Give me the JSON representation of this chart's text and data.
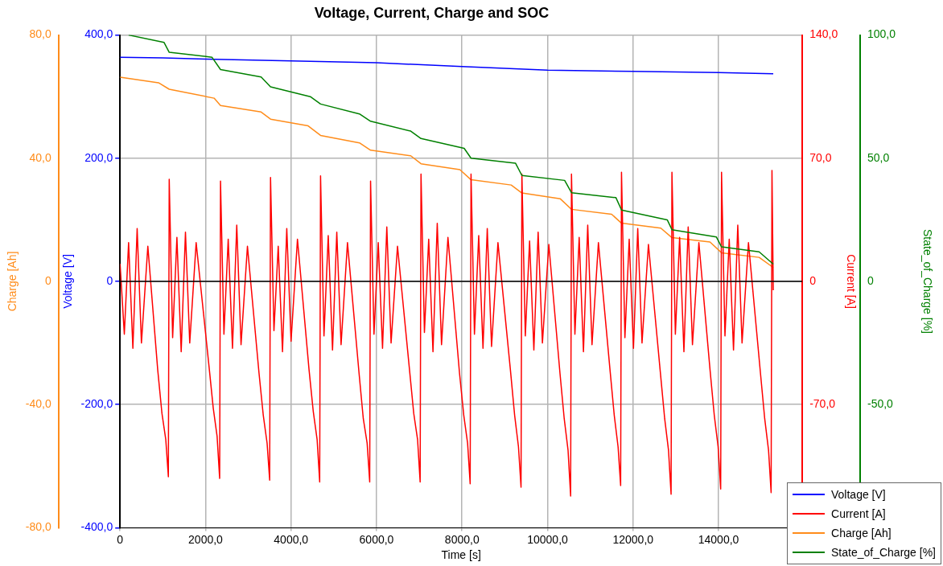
{
  "chart_data": [
    {
      "type": "line",
      "title": "Voltage, Current, Charge and SOC",
      "xlabel": "Time [s]",
      "ylabel": "Voltage [V]",
      "y2label": "Current [A]",
      "y3label": "Charge [Ah]",
      "xlim": [
        0,
        15960
      ],
      "xticks": [
        0,
        {
          "value": 2000,
          "label": "2000,0"
        },
        {
          "value": 4000,
          "label": "4000,0"
        },
        {
          "value": 6000,
          "label": "6000,0"
        },
        {
          "value": 8000,
          "label": "8000,0"
        },
        {
          "value": 10000,
          "label": "10000,0"
        },
        {
          "value": 12000,
          "label": "12000,0"
        },
        {
          "value": 14000,
          "label": "14000,0"
        }
      ],
      "ylim": [
        -400,
        400
      ],
      "yticks": [
        {
          "value": -400,
          "label": "-400,0"
        },
        {
          "value": -200,
          "label": "-200,0"
        },
        0,
        {
          "value": 200,
          "label": "200,0"
        },
        {
          "value": 400,
          "label": "400,0"
        }
      ],
      "y2lim": [
        -140,
        140
      ],
      "y2ticks": [
        {
          "value": -70,
          "label": "-70,0"
        },
        0,
        {
          "value": 70,
          "label": "70,0"
        },
        {
          "value": 140,
          "label": "140,0"
        }
      ],
      "y3lim": [
        -80,
        80
      ],
      "y3ticks": [
        {
          "value": -80,
          "label": "-80,0"
        },
        {
          "value": -40,
          "label": "-40,0"
        },
        0,
        {
          "value": 40,
          "label": "40,0"
        },
        {
          "value": 80,
          "label": "80,0"
        }
      ],
      "grid": true,
      "legend": "bottom right",
      "marker": "none",
      "line_style": "solid",
      "ref_lines": [
        {
          "axis": "y",
          "value": 0,
          "color": "#000000"
        }
      ],
      "series": [
        {
          "name": "Voltage [V]",
          "color": "#0000ff",
          "x": [
            0,
            1000,
            2000,
            4000,
            6000,
            8000,
            10000,
            12000,
            14000,
            15280
          ],
          "values": [
            364,
            363,
            361,
            358,
            355,
            349,
            343,
            341,
            339,
            337
          ]
        },
        {
          "name": "Current [A]",
          "color": "#ff0000",
          "axis": "y2",
          "x": [
            0,
            100,
            200,
            300,
            400,
            500,
            650,
            880,
            980,
            1070,
            1130,
            1150,
            1230,
            1330,
            1430,
            1530,
            1630,
            1780,
            2080,
            2180,
            2270,
            2330,
            2350,
            2430,
            2530,
            2630,
            2730,
            2830,
            2980,
            3250,
            3350,
            3440,
            3500,
            3520,
            3600,
            3700,
            3800,
            3900,
            4000,
            4150,
            4420,
            4520,
            4610,
            4670,
            4690,
            4770,
            4870,
            4970,
            5070,
            5170,
            5320,
            5590,
            5690,
            5780,
            5840,
            5860,
            5940,
            6040,
            6140,
            6240,
            6340,
            6490,
            6770,
            6870,
            6960,
            7020,
            7040,
            7120,
            7220,
            7320,
            7420,
            7520,
            7670,
            7940,
            8040,
            8130,
            8190,
            8210,
            8290,
            8390,
            8490,
            8590,
            8690,
            8840,
            9130,
            9230,
            9320,
            9380,
            9400,
            9480,
            9580,
            9680,
            9780,
            9880,
            10030,
            10290,
            10390,
            10480,
            10540,
            10560,
            10640,
            10740,
            10840,
            10940,
            11040,
            11190,
            11460,
            11560,
            11650,
            11710,
            11730,
            11810,
            11910,
            12010,
            12110,
            12210,
            12360,
            12640,
            12740,
            12830,
            12890,
            12910,
            12990,
            13090,
            13190,
            13290,
            13390,
            13540,
            13800,
            13900,
            13990,
            14050,
            14070,
            14150,
            14250,
            14350,
            14450,
            14550,
            14700,
            14980,
            15080,
            15170,
            15230,
            15250,
            15280
          ],
          "values": [
            10,
            -30,
            22,
            -38,
            30,
            -35,
            20,
            -50,
            -75,
            -90,
            -111,
            58,
            -32,
            25,
            -40,
            28,
            -35,
            22,
            -48,
            -72,
            -88,
            -112,
            57,
            -30,
            24,
            -38,
            32,
            -36,
            20,
            -52,
            -76,
            -92,
            -113,
            59,
            -28,
            20,
            -40,
            30,
            -34,
            24,
            -50,
            -74,
            -90,
            -114,
            60,
            -31,
            26,
            -39,
            28,
            -36,
            22,
            -52,
            -78,
            -92,
            -114,
            57,
            -30,
            22,
            -38,
            31,
            -35,
            20,
            -50,
            -75,
            -90,
            -114,
            61,
            -29,
            24,
            -40,
            33,
            -36,
            25,
            -52,
            -76,
            -92,
            -115,
            61,
            -30,
            26,
            -38,
            30,
            -37,
            22,
            -50,
            -76,
            -94,
            -117,
            61,
            -31,
            23,
            -39,
            28,
            -35,
            21,
            -52,
            -78,
            -96,
            -122,
            61,
            -30,
            25,
            -40,
            32,
            -36,
            22,
            -50,
            -76,
            -94,
            -116,
            62,
            -32,
            24,
            -38,
            30,
            -35,
            21,
            -52,
            -78,
            -96,
            -121,
            62,
            -30,
            25,
            -40,
            31,
            -36,
            22,
            -50,
            -76,
            -94,
            -118,
            62,
            -31,
            24,
            -39,
            32,
            -35,
            22,
            -52,
            -78,
            -96,
            -120,
            63,
            -5
          ]
        },
        {
          "name": "Charge [Ah]",
          "color": "#ff8c1a",
          "axis": "y3",
          "x": [
            0,
            900,
            1150,
            2200,
            2350,
            3300,
            3520,
            4400,
            4690,
            5600,
            5860,
            6800,
            7040,
            7950,
            8210,
            9150,
            9400,
            10300,
            10560,
            11500,
            11730,
            12650,
            12910,
            13800,
            14070,
            14950,
            15280
          ],
          "values": [
            66.3,
            64.5,
            62.4,
            59.5,
            57.1,
            55,
            52.7,
            50.5,
            47.4,
            45,
            42.6,
            40.8,
            38.2,
            36.3,
            33,
            31.3,
            28.7,
            26.8,
            23.4,
            21.8,
            18.9,
            17.3,
            14.2,
            12.8,
            9.3,
            7.8,
            4.5
          ]
        }
      ]
    },
    {
      "type": "line",
      "ylabel": "State_of_Charge [%]",
      "xlim": [
        0,
        15960
      ],
      "ylim": [
        -100,
        100
      ],
      "yticks": [
        {
          "value": -50,
          "label": "-50,0"
        },
        0,
        {
          "value": 50,
          "label": "50,0"
        },
        {
          "value": 100,
          "label": "100,0"
        }
      ],
      "tick_labels": "y",
      "legend": "bottom right",
      "marker": "none",
      "line_style": "solid",
      "series": [
        {
          "name": "State_of_Charge [%]",
          "color": "#008000",
          "x": [
            200,
            1030,
            1150,
            2150,
            2350,
            3300,
            3520,
            4450,
            4690,
            5600,
            5860,
            6800,
            7040,
            8050,
            8210,
            9250,
            9400,
            10400,
            10560,
            11600,
            11730,
            12800,
            12910,
            13950,
            14070,
            14950,
            15280
          ],
          "values": [
            100,
            97,
            93,
            91,
            86,
            83,
            79,
            75,
            72,
            68,
            65,
            61,
            58,
            54,
            50,
            48,
            43,
            41,
            36,
            34,
            29,
            25,
            21,
            18,
            14,
            12,
            7
          ]
        }
      ]
    }
  ]
}
